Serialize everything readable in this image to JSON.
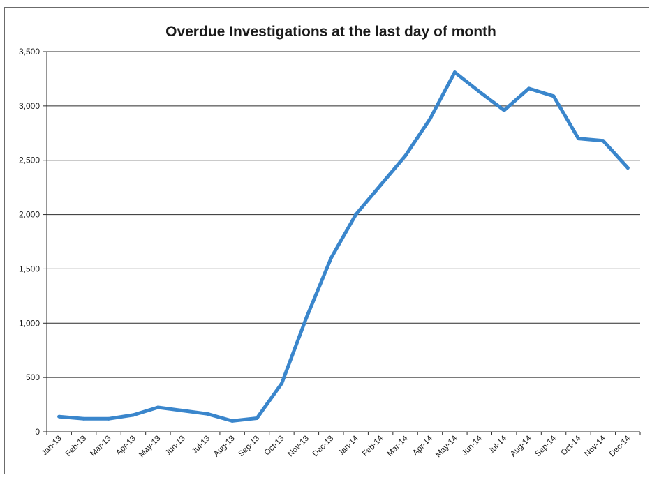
{
  "chart_data": {
    "type": "line",
    "title": "Overdue Investigations at the last day of month",
    "xlabel": "",
    "ylabel": "",
    "ylim": [
      0,
      3500
    ],
    "y_ticks": [
      0,
      500,
      1000,
      1500,
      2000,
      2500,
      3000,
      3500
    ],
    "y_tick_labels": [
      "0",
      "500",
      "1,000",
      "1,500",
      "2,000",
      "2,500",
      "3,000",
      "3,500"
    ],
    "grid": true,
    "legend": "none",
    "line_color": "#3a86cc",
    "categories": [
      "Jan-13",
      "Feb-13",
      "Mar-13",
      "Apr-13",
      "May-13",
      "Jun-13",
      "Jul-13",
      "Aug-13",
      "Sep-13",
      "Oct-13",
      "Nov-13",
      "Dec-13",
      "Jan-14",
      "Feb-14",
      "Mar-14",
      "Apr-14",
      "May-14",
      "Jun-14",
      "Jul-14",
      "Aug-14",
      "Sep-14",
      "Oct-14",
      "Nov-14",
      "Dec-14"
    ],
    "series": [
      {
        "values": [
          140,
          120,
          120,
          155,
          225,
          195,
          165,
          100,
          125,
          445,
          1050,
          1600,
          2000,
          2270,
          2540,
          2880,
          3310,
          3130,
          2960,
          3160,
          3090,
          2700,
          2680,
          2430
        ]
      }
    ]
  }
}
